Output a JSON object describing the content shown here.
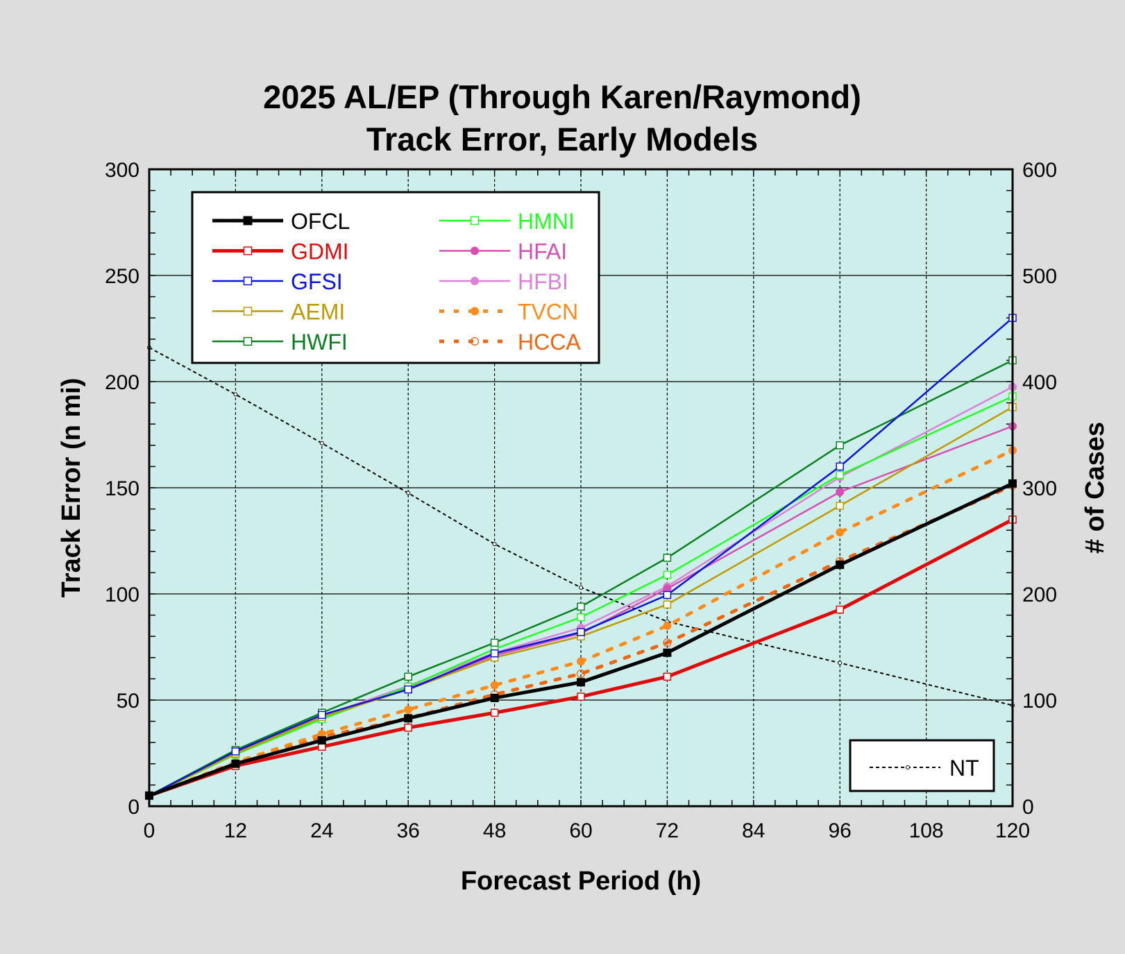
{
  "chart_data": {
    "type": "line",
    "title": [
      "2025 AL/EP (Through Karen/Raymond)",
      "Track Error, Early Models"
    ],
    "xlabel": "Forecast Period (h)",
    "ylabel": "Track Error (n mi)",
    "y2label": "# of Cases",
    "xlim": [
      0,
      120
    ],
    "ylim": [
      0,
      300
    ],
    "y2lim": [
      0,
      600
    ],
    "xticks": [
      "0",
      "12",
      "24",
      "36",
      "48",
      "60",
      "72",
      "84",
      "96",
      "108",
      "120"
    ],
    "yticks": [
      "0",
      "50",
      "100",
      "150",
      "200",
      "250",
      "300"
    ],
    "y2ticks": [
      "0",
      "100",
      "200",
      "300",
      "400",
      "500",
      "600"
    ],
    "grid": true,
    "legend_position": "top-left",
    "x": [
      0,
      12,
      24,
      36,
      48,
      60,
      72,
      96,
      120
    ],
    "series": [
      {
        "name": "OFCL",
        "color": "#000000",
        "width": 5,
        "dash": "solid",
        "marker": "square-filled",
        "values": [
          5,
          20,
          31,
          41.4,
          51,
          58.4,
          72.3,
          113.7,
          152
        ]
      },
      {
        "name": "GDMI",
        "color": "#e00a0a",
        "width": 5,
        "dash": "solid",
        "marker": "square-open",
        "values": [
          5,
          19,
          28,
          37,
          44,
          51.6,
          61,
          92.6,
          135
        ]
      },
      {
        "name": "GFSI",
        "color": "#0a14dc",
        "width": 2.5,
        "dash": "solid",
        "marker": "square-open",
        "values": [
          5,
          25.8,
          43,
          55,
          72,
          82,
          99.5,
          160,
          230
        ]
      },
      {
        "name": "AEMI",
        "color": "#c09a00",
        "width": 2.5,
        "dash": "solid",
        "marker": "square-open",
        "values": [
          5,
          24.8,
          42,
          55,
          70,
          80,
          95,
          141.5,
          188
        ]
      },
      {
        "name": "HWFI",
        "color": "#0a8020",
        "width": 2.5,
        "dash": "solid",
        "marker": "square-open",
        "values": [
          5,
          26.5,
          44,
          61,
          77,
          94,
          117,
          170,
          210
        ]
      },
      {
        "name": "HMNI",
        "color": "#22ff22",
        "width": 2.5,
        "dash": "solid",
        "marker": "square-open",
        "values": [
          5,
          24.4,
          41,
          56.3,
          74,
          89,
          109,
          156,
          193
        ]
      },
      {
        "name": "HFAI",
        "color": "#d84fb4",
        "width": 2.5,
        "dash": "solid",
        "marker": "circle-filled",
        "values": [
          5,
          25.4,
          42,
          55.6,
          71,
          81.4,
          102.5,
          148,
          179
        ]
      },
      {
        "name": "HFBI",
        "color": "#dc82d6",
        "width": 2.5,
        "dash": "solid",
        "marker": "circle-filled",
        "values": [
          5,
          25.8,
          42.4,
          56.7,
          72.3,
          84,
          103.5,
          155,
          197.5
        ]
      },
      {
        "name": "TVCN",
        "color": "#ff8c1a",
        "width": 5,
        "dash": "dotted",
        "marker": "circle-filled",
        "values": [
          5,
          20.7,
          34,
          45.5,
          57,
          68.2,
          85,
          129,
          167.6
        ]
      },
      {
        "name": "HCCA",
        "color": "#f0650f",
        "width": 5,
        "dash": "dotted",
        "marker": "circle-open",
        "values": [
          5,
          19.7,
          32.6,
          41.4,
          52.6,
          62.4,
          77,
          115.4,
          151
        ]
      }
    ],
    "cases": {
      "name": "NT",
      "color": "#000000",
      "axis": "right",
      "values": [
        432,
        388,
        342,
        295,
        247,
        206,
        174,
        135,
        95
      ]
    }
  }
}
